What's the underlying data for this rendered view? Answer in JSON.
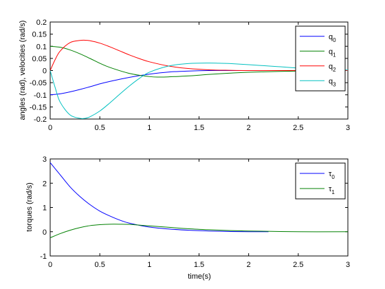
{
  "chart_data": [
    {
      "type": "line",
      "title": "",
      "xlabel": "",
      "ylabel": "angles (rad), velocities (rad/s)",
      "xlim": [
        0,
        3
      ],
      "ylim": [
        -0.2,
        0.2
      ],
      "xticks": [
        "0",
        "0.5",
        "1",
        "1.5",
        "2",
        "2.5",
        "3"
      ],
      "yticks": [
        "-0.2",
        "-0.15",
        "-0.1",
        "-0.05",
        "0",
        "0.05",
        "0.1",
        "0.15",
        "0.2"
      ],
      "grid": false,
      "legend_position": "top-right",
      "series": [
        {
          "name": "q",
          "sub": "0",
          "color": "#0000ff",
          "x": [
            0,
            0.1,
            0.2,
            0.3,
            0.4,
            0.5,
            0.6,
            0.8,
            1.0,
            1.2,
            1.4,
            1.6,
            1.8,
            2.0,
            2.5,
            3.0
          ],
          "values": [
            -0.1,
            -0.096,
            -0.088,
            -0.078,
            -0.067,
            -0.055,
            -0.045,
            -0.028,
            -0.015,
            -0.006,
            -0.002,
            0.0,
            0.0,
            0.0,
            0.0,
            0.0
          ]
        },
        {
          "name": "q",
          "sub": "1",
          "color": "#008000",
          "x": [
            0,
            0.1,
            0.2,
            0.3,
            0.4,
            0.5,
            0.6,
            0.8,
            1.0,
            1.1,
            1.2,
            1.4,
            1.6,
            1.8,
            2.0,
            2.5,
            3.0
          ],
          "values": [
            0.1,
            0.096,
            0.085,
            0.069,
            0.05,
            0.03,
            0.013,
            -0.012,
            -0.025,
            -0.027,
            -0.026,
            -0.022,
            -0.016,
            -0.011,
            -0.007,
            -0.002,
            0.0
          ]
        },
        {
          "name": "q",
          "sub": "2",
          "color": "#ff0000",
          "x": [
            0,
            0.05,
            0.1,
            0.2,
            0.3,
            0.35,
            0.4,
            0.5,
            0.6,
            0.7,
            0.8,
            0.9,
            1.0,
            1.2,
            1.4,
            1.6,
            1.8,
            2.0,
            2.5,
            3.0
          ],
          "values": [
            0.0,
            0.045,
            0.08,
            0.115,
            0.124,
            0.125,
            0.123,
            0.113,
            0.098,
            0.081,
            0.064,
            0.049,
            0.036,
            0.018,
            0.008,
            0.003,
            0.001,
            0.0,
            0.0,
            0.0
          ]
        },
        {
          "name": "q",
          "sub": "3",
          "color": "#00c0c0",
          "x": [
            0,
            0.05,
            0.1,
            0.2,
            0.3,
            0.35,
            0.4,
            0.5,
            0.6,
            0.7,
            0.8,
            0.9,
            1.0,
            1.2,
            1.4,
            1.6,
            1.7,
            1.8,
            2.0,
            2.3,
            2.6,
            3.0
          ],
          "values": [
            0.0,
            -0.07,
            -0.13,
            -0.183,
            -0.197,
            -0.197,
            -0.191,
            -0.167,
            -0.134,
            -0.098,
            -0.063,
            -0.032,
            -0.007,
            0.019,
            0.029,
            0.031,
            0.03,
            0.029,
            0.024,
            0.016,
            0.008,
            0.002
          ]
        }
      ]
    },
    {
      "type": "line",
      "title": "",
      "xlabel": "time(s)",
      "ylabel": "torques (rad/s)",
      "xlim": [
        0,
        3
      ],
      "ylim": [
        -1,
        3
      ],
      "xticks": [
        "0",
        "0.5",
        "1",
        "1.5",
        "2",
        "2.5",
        "3"
      ],
      "yticks": [
        "-1",
        "0",
        "1",
        "2",
        "3"
      ],
      "grid": false,
      "legend_position": "top-right",
      "series": [
        {
          "name": "τ",
          "sub": "0",
          "color": "#0000ff",
          "x": [
            0,
            0.1,
            0.2,
            0.3,
            0.4,
            0.5,
            0.6,
            0.7,
            0.8,
            1.0,
            1.2,
            1.4,
            1.6,
            1.8,
            2.0,
            2.2
          ],
          "values": [
            2.85,
            2.35,
            1.85,
            1.45,
            1.12,
            0.85,
            0.65,
            0.48,
            0.35,
            0.19,
            0.11,
            0.06,
            0.03,
            0.01,
            0.0,
            0.0
          ]
        },
        {
          "name": "τ",
          "sub": "1",
          "color": "#008000",
          "x": [
            0,
            0.1,
            0.2,
            0.3,
            0.4,
            0.5,
            0.6,
            0.7,
            0.8,
            1.0,
            1.2,
            1.4,
            1.6,
            1.8,
            2.0,
            2.5,
            3.0
          ],
          "values": [
            -0.25,
            -0.08,
            0.06,
            0.17,
            0.25,
            0.29,
            0.31,
            0.31,
            0.3,
            0.24,
            0.18,
            0.12,
            0.08,
            0.05,
            0.03,
            0.0,
            0.0
          ]
        }
      ]
    }
  ]
}
